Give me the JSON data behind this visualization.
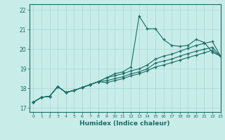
{
  "xlabel": "Humidex (Indice chaleur)",
  "xlim": [
    -0.5,
    23
  ],
  "ylim": [
    16.8,
    22.3
  ],
  "background_color": "#c8ece8",
  "grid_color": "#a8d8d4",
  "line_color": "#1a6e68",
  "xtick_labels": [
    "0",
    "1",
    "2",
    "3",
    "4",
    "5",
    "6",
    "7",
    "8",
    "9",
    "10",
    "11",
    "12",
    "13",
    "14",
    "15",
    "16",
    "17",
    "18",
    "19",
    "20",
    "21",
    "22",
    "23"
  ],
  "yticks": [
    17,
    18,
    19,
    20,
    21,
    22
  ],
  "lines": [
    {
      "x": [
        0,
        1,
        2,
        3,
        4,
        5,
        6,
        7,
        8,
        9,
        10,
        11,
        12,
        13,
        14,
        15,
        16,
        17,
        18,
        19,
        20,
        21,
        22,
        23
      ],
      "y": [
        17.3,
        17.55,
        17.6,
        18.1,
        17.8,
        17.9,
        18.05,
        18.2,
        18.35,
        18.55,
        18.75,
        18.85,
        19.1,
        21.7,
        21.05,
        21.05,
        20.5,
        20.2,
        20.15,
        20.2,
        20.5,
        20.35,
        19.85,
        19.65
      ]
    },
    {
      "x": [
        0,
        1,
        2,
        3,
        4,
        5,
        6,
        7,
        8,
        9,
        10,
        11,
        12,
        13,
        14,
        15,
        16,
        17,
        18,
        19,
        20,
        21,
        22,
        23
      ],
      "y": [
        17.3,
        17.55,
        17.6,
        18.1,
        17.8,
        17.9,
        18.05,
        18.2,
        18.35,
        18.55,
        18.65,
        18.75,
        18.9,
        19.0,
        19.2,
        19.5,
        19.65,
        19.75,
        19.9,
        20.05,
        20.2,
        20.3,
        20.4,
        19.65
      ]
    },
    {
      "x": [
        0,
        1,
        2,
        3,
        4,
        5,
        6,
        7,
        8,
        9,
        10,
        11,
        12,
        13,
        14,
        15,
        16,
        17,
        18,
        19,
        20,
        21,
        22,
        23
      ],
      "y": [
        17.3,
        17.55,
        17.6,
        18.1,
        17.8,
        17.9,
        18.05,
        18.2,
        18.35,
        18.4,
        18.5,
        18.6,
        18.75,
        18.85,
        19.0,
        19.3,
        19.4,
        19.5,
        19.65,
        19.78,
        19.9,
        20.0,
        20.1,
        19.65
      ]
    },
    {
      "x": [
        0,
        1,
        2,
        3,
        4,
        5,
        6,
        7,
        8,
        9,
        10,
        11,
        12,
        13,
        14,
        15,
        16,
        17,
        18,
        19,
        20,
        21,
        22,
        23
      ],
      "y": [
        17.3,
        17.55,
        17.6,
        18.1,
        17.8,
        17.9,
        18.05,
        18.2,
        18.35,
        18.3,
        18.4,
        18.5,
        18.65,
        18.75,
        18.9,
        19.1,
        19.2,
        19.32,
        19.45,
        19.58,
        19.7,
        19.82,
        19.95,
        19.65
      ]
    }
  ]
}
